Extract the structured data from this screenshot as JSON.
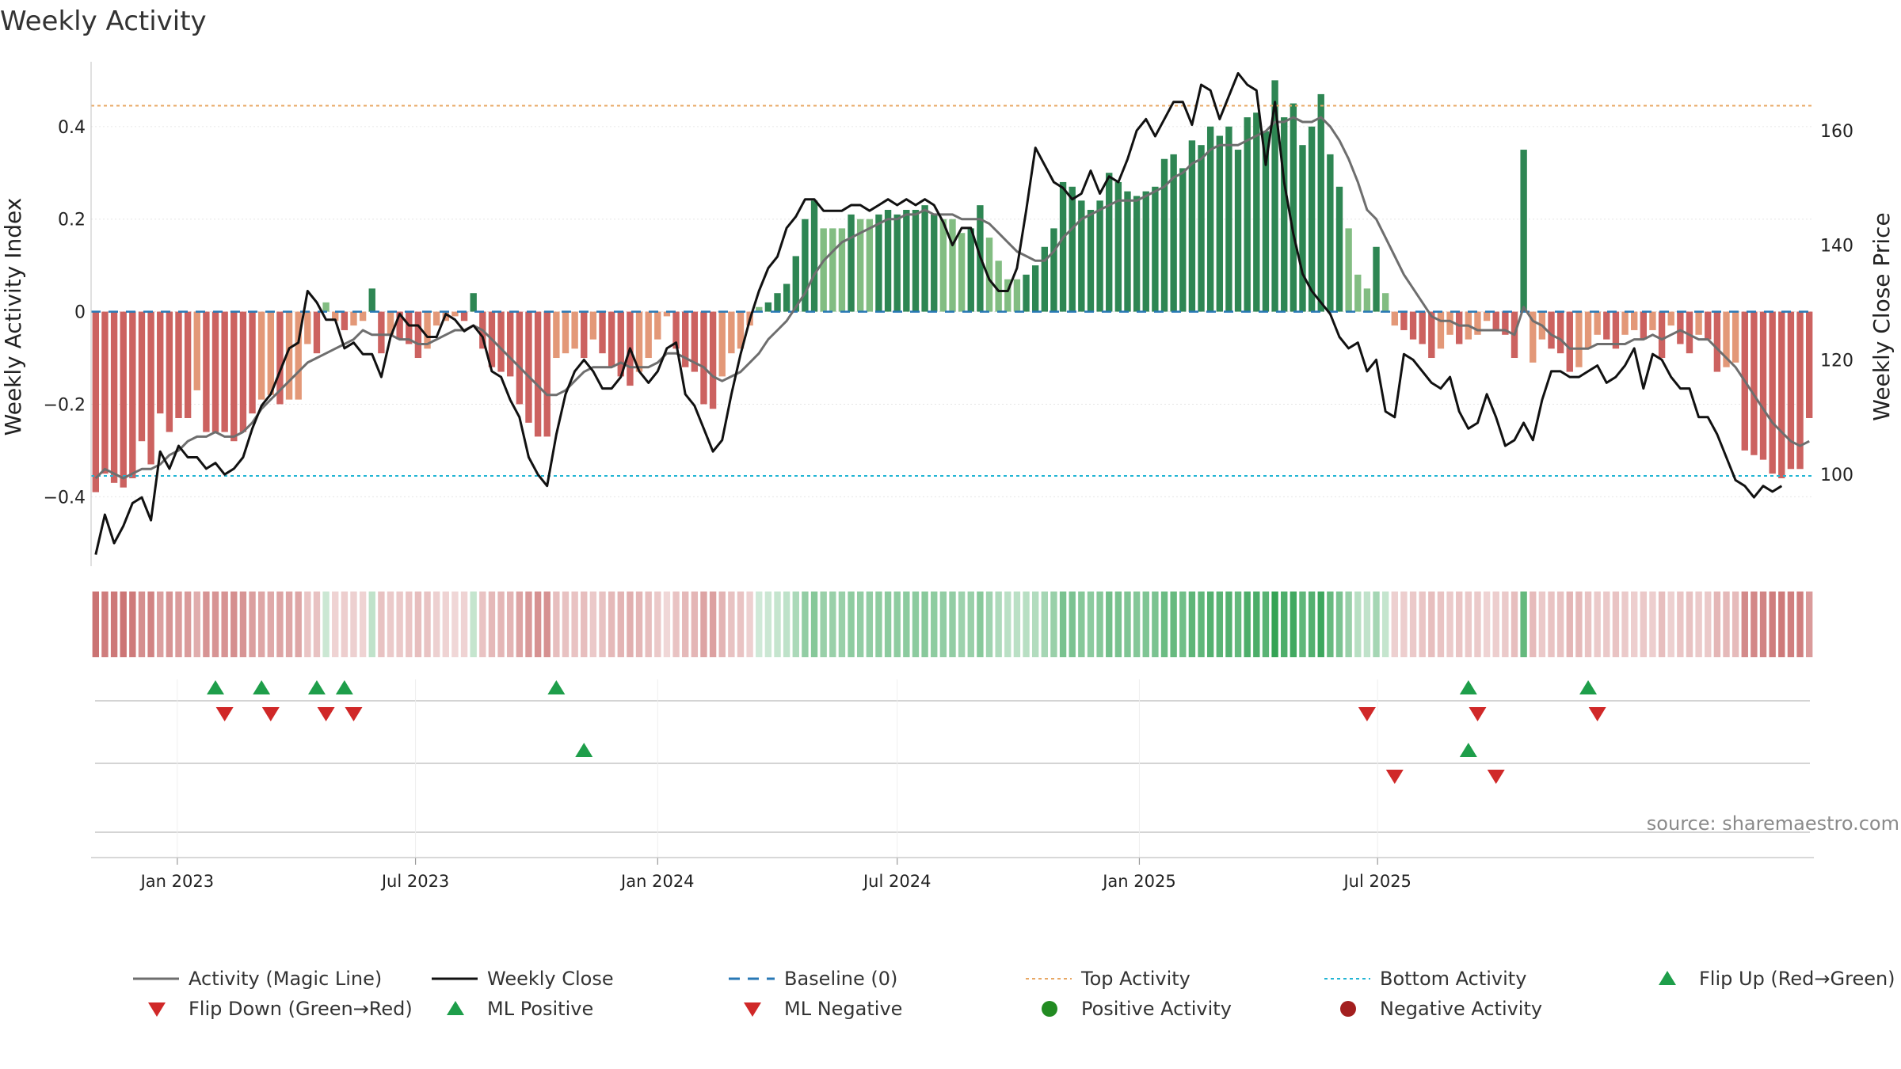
{
  "chart_data": {
    "type": "bar",
    "title": "Weekly Activity",
    "ylabel_left": "Weekly Activity Index",
    "ylabel_right": "Weekly Close Price",
    "source": "source: sharemaestro.com",
    "x_start": "2022-10-31",
    "week_days": 7,
    "x_ticks": [
      {
        "date": "2023-01-01",
        "label": "Jan 2023"
      },
      {
        "date": "2023-07-01",
        "label": "Jul 2023"
      },
      {
        "date": "2024-01-01",
        "label": "Jan 2024"
      },
      {
        "date": "2024-07-01",
        "label": "Jul 2024"
      },
      {
        "date": "2025-01-01",
        "label": "Jan 2025"
      },
      {
        "date": "2025-07-01",
        "label": "Jul 2025"
      }
    ],
    "y_left": {
      "min": -0.55,
      "max": 0.54,
      "ticks": [
        {
          "v": 0.4,
          "label": "0.4"
        },
        {
          "v": 0.2,
          "label": "0.2"
        },
        {
          "v": 0,
          "label": "0"
        },
        {
          "v": -0.2,
          "label": "−0.2"
        },
        {
          "v": -0.4,
          "label": "−0.4"
        }
      ]
    },
    "y_right": {
      "min": 84,
      "max": 172,
      "ticks": [
        {
          "v": 160,
          "label": "160"
        },
        {
          "v": 140,
          "label": "140"
        },
        {
          "v": 120,
          "label": "120"
        },
        {
          "v": 100,
          "label": "100"
        }
      ]
    },
    "top_activity": 0.445,
    "bottom_activity": -0.355,
    "activity": [
      -0.39,
      -0.35,
      -0.37,
      -0.38,
      -0.36,
      -0.28,
      -0.33,
      -0.22,
      -0.26,
      -0.23,
      -0.23,
      -0.17,
      -0.26,
      -0.26,
      -0.26,
      -0.28,
      -0.26,
      -0.22,
      -0.19,
      -0.18,
      -0.2,
      -0.19,
      -0.19,
      -0.07,
      -0.09,
      0.02,
      -0.02,
      -0.04,
      -0.03,
      -0.02,
      0.05,
      -0.09,
      -0.05,
      -0.06,
      -0.07,
      -0.1,
      -0.08,
      -0.03,
      -0.02,
      -0.01,
      -0.02,
      0.04,
      -0.08,
      -0.12,
      -0.13,
      -0.14,
      -0.2,
      -0.24,
      -0.27,
      -0.27,
      -0.1,
      -0.09,
      -0.08,
      -0.1,
      -0.06,
      -0.09,
      -0.12,
      -0.14,
      -0.16,
      -0.13,
      -0.1,
      -0.06,
      -0.01,
      -0.08,
      -0.12,
      -0.13,
      -0.2,
      -0.21,
      -0.14,
      -0.09,
      -0.08,
      -0.03,
      0.01,
      0.02,
      0.04,
      0.06,
      0.12,
      0.2,
      0.24,
      0.18,
      0.18,
      0.18,
      0.21,
      0.2,
      0.2,
      0.21,
      0.22,
      0.21,
      0.22,
      0.22,
      0.23,
      0.21,
      0.2,
      0.2,
      0.17,
      0.18,
      0.23,
      0.16,
      0.11,
      0.07,
      0.07,
      0.08,
      0.1,
      0.14,
      0.18,
      0.28,
      0.27,
      0.24,
      0.22,
      0.24,
      0.3,
      0.28,
      0.26,
      0.25,
      0.26,
      0.27,
      0.33,
      0.34,
      0.31,
      0.37,
      0.36,
      0.4,
      0.38,
      0.4,
      0.35,
      0.42,
      0.43,
      0.39,
      0.5,
      0.42,
      0.45,
      0.36,
      0.4,
      0.47,
      0.34,
      0.27,
      0.18,
      0.08,
      0.05,
      0.14,
      0.04,
      -0.03,
      -0.04,
      -0.06,
      -0.07,
      -0.1,
      -0.08,
      -0.05,
      -0.07,
      -0.06,
      -0.05,
      -0.02,
      -0.04,
      -0.05,
      -0.1,
      0.35,
      -0.11,
      -0.06,
      -0.08,
      -0.09,
      -0.13,
      -0.12,
      -0.08,
      -0.05,
      -0.06,
      -0.08,
      -0.05,
      -0.04,
      -0.06,
      -0.04,
      -0.1,
      -0.03,
      -0.07,
      -0.09,
      -0.05,
      -0.06,
      -0.13,
      -0.12,
      -0.11,
      -0.3,
      -0.31,
      -0.32,
      -0.35,
      -0.36,
      -0.34,
      -0.34,
      -0.23
    ],
    "close": [
      86,
      93,
      88,
      91,
      95,
      96,
      92,
      104,
      101,
      105,
      103,
      103,
      101,
      102,
      100,
      101,
      103,
      108,
      112,
      114,
      118,
      122,
      123,
      132,
      130,
      127,
      127,
      122,
      123,
      121,
      121,
      117,
      124,
      128,
      126,
      126,
      124,
      124,
      128,
      127,
      125,
      126,
      124,
      118,
      117,
      113,
      110,
      103,
      100,
      98,
      107,
      114,
      118,
      120,
      118,
      115,
      115,
      117,
      122,
      118,
      116,
      118,
      122,
      123,
      114,
      112,
      108,
      104,
      106,
      114,
      121,
      127,
      132,
      136,
      138,
      143,
      145,
      148,
      148,
      146,
      146,
      146,
      147,
      147,
      146,
      147,
      148,
      147,
      148,
      147,
      148,
      147,
      144,
      140,
      143,
      143,
      138,
      134,
      132,
      132,
      136,
      146,
      157,
      154,
      151,
      150,
      148,
      149,
      153,
      149,
      152,
      151,
      155,
      160,
      162,
      159,
      162,
      165,
      165,
      161,
      168,
      167,
      162,
      166,
      170,
      168,
      167,
      154,
      165,
      151,
      142,
      135,
      132,
      130,
      128,
      124,
      122,
      123,
      118,
      120,
      111,
      110,
      121,
      120,
      118,
      116,
      115,
      117,
      111,
      108,
      109,
      114,
      110,
      105,
      106,
      109,
      106,
      113,
      118,
      118,
      117,
      117,
      118,
      119,
      116,
      117,
      119,
      122,
      115,
      121,
      120,
      117,
      115,
      115,
      110,
      110,
      107,
      103,
      99,
      98,
      96,
      98,
      97,
      98
    ],
    "magic_line": [
      -0.36,
      -0.34,
      -0.35,
      -0.36,
      -0.35,
      -0.34,
      -0.34,
      -0.33,
      -0.31,
      -0.3,
      -0.28,
      -0.27,
      -0.27,
      -0.26,
      -0.27,
      -0.27,
      -0.26,
      -0.24,
      -0.21,
      -0.19,
      -0.17,
      -0.15,
      -0.13,
      -0.11,
      -0.1,
      -0.09,
      -0.08,
      -0.07,
      -0.06,
      -0.04,
      -0.05,
      -0.05,
      -0.05,
      -0.06,
      -0.06,
      -0.07,
      -0.07,
      -0.06,
      -0.05,
      -0.04,
      -0.04,
      -0.03,
      -0.04,
      -0.06,
      -0.08,
      -0.1,
      -0.12,
      -0.14,
      -0.16,
      -0.18,
      -0.18,
      -0.17,
      -0.15,
      -0.13,
      -0.12,
      -0.12,
      -0.12,
      -0.11,
      -0.12,
      -0.12,
      -0.12,
      -0.11,
      -0.09,
      -0.09,
      -0.1,
      -0.11,
      -0.12,
      -0.14,
      -0.15,
      -0.14,
      -0.13,
      -0.11,
      -0.09,
      -0.06,
      -0.04,
      -0.02,
      0.01,
      0.04,
      0.08,
      0.11,
      0.13,
      0.15,
      0.16,
      0.17,
      0.18,
      0.19,
      0.2,
      0.2,
      0.21,
      0.21,
      0.22,
      0.21,
      0.21,
      0.21,
      0.2,
      0.2,
      0.2,
      0.19,
      0.17,
      0.15,
      0.13,
      0.12,
      0.11,
      0.11,
      0.13,
      0.16,
      0.18,
      0.2,
      0.21,
      0.22,
      0.23,
      0.24,
      0.24,
      0.24,
      0.25,
      0.26,
      0.27,
      0.29,
      0.3,
      0.32,
      0.33,
      0.35,
      0.36,
      0.36,
      0.36,
      0.37,
      0.38,
      0.39,
      0.41,
      0.41,
      0.42,
      0.41,
      0.41,
      0.42,
      0.4,
      0.37,
      0.33,
      0.28,
      0.22,
      0.2,
      0.16,
      0.12,
      0.08,
      0.05,
      0.02,
      -0.01,
      -0.02,
      -0.02,
      -0.03,
      -0.03,
      -0.04,
      -0.04,
      -0.04,
      -0.04,
      -0.05,
      0.01,
      -0.02,
      -0.03,
      -0.05,
      -0.06,
      -0.08,
      -0.08,
      -0.08,
      -0.07,
      -0.07,
      -0.07,
      -0.07,
      -0.06,
      -0.06,
      -0.05,
      -0.06,
      -0.05,
      -0.04,
      -0.05,
      -0.06,
      -0.06,
      -0.08,
      -0.1,
      -0.12,
      -0.15,
      -0.18,
      -0.21,
      -0.24,
      -0.26,
      -0.28,
      -0.29,
      -0.28
    ],
    "flip_up_weeks": [
      13,
      18,
      24,
      27,
      50,
      149,
      162
    ],
    "flip_down_weeks": [
      14,
      19,
      25,
      28,
      138,
      150,
      163
    ],
    "ml_positive_weeks": [
      53,
      149
    ],
    "ml_negative_weeks": [
      141,
      152
    ],
    "colors": {
      "pos_strong": "#2e8653",
      "pos_weak": "#82bd82",
      "neg_strong": "#cc6260",
      "neg_weak": "#e39878",
      "close_line": "#111111",
      "magic_line": "#6e6e6e",
      "baseline": "#2878b5",
      "top_activity": "#e8a865",
      "bottom_activity": "#22b5d4",
      "flip_up": "#1e9e4a",
      "flip_down": "#d02828",
      "positive_dot": "#228b22",
      "negative_dot": "#a31f1f"
    },
    "legend": [
      {
        "key": "magic",
        "label": "Activity (Magic Line)"
      },
      {
        "key": "close",
        "label": "Weekly Close"
      },
      {
        "key": "baseline",
        "label": "Baseline (0)"
      },
      {
        "key": "top",
        "label": "Top Activity"
      },
      {
        "key": "bottom",
        "label": "Bottom Activity"
      },
      {
        "key": "flipup",
        "label": "Flip Up (Red→Green)"
      },
      {
        "key": "flipdown",
        "label": "Flip Down (Green→Red)"
      },
      {
        "key": "mlpos",
        "label": "ML Positive"
      },
      {
        "key": "mlneg",
        "label": "ML Negative"
      },
      {
        "key": "posact",
        "label": "Positive Activity"
      },
      {
        "key": "negact",
        "label": "Negative Activity"
      }
    ]
  }
}
